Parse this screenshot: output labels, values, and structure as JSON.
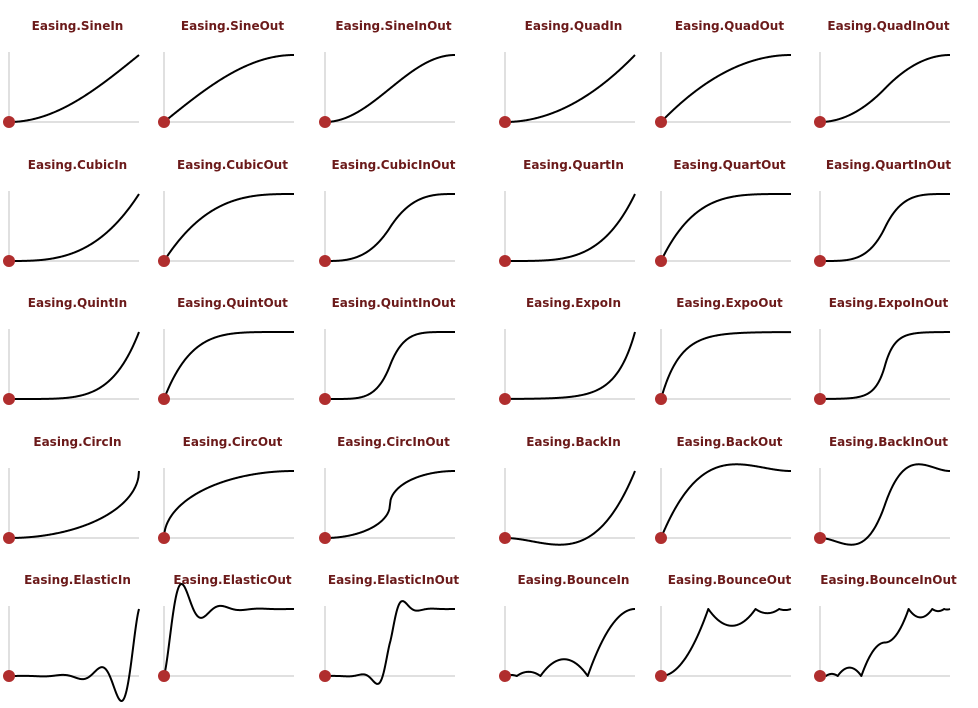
{
  "colors": {
    "title": "#6b1a1a",
    "curve": "#000000",
    "axis": "#d6d6d6",
    "marker": "#b02e2e"
  },
  "chart_data": [
    {
      "type": "line",
      "title": "Easing.SineIn",
      "fn": "SineIn"
    },
    {
      "type": "line",
      "title": "Easing.SineOut",
      "fn": "SineOut"
    },
    {
      "type": "line",
      "title": "Easing.SineInOut",
      "fn": "SineInOut"
    },
    {
      "type": "line",
      "title": "Easing.QuadIn",
      "fn": "QuadIn"
    },
    {
      "type": "line",
      "title": "Easing.QuadOut",
      "fn": "QuadOut"
    },
    {
      "type": "line",
      "title": "Easing.QuadInOut",
      "fn": "QuadInOut"
    },
    {
      "type": "line",
      "title": "Easing.CubicIn",
      "fn": "CubicIn"
    },
    {
      "type": "line",
      "title": "Easing.CubicOut",
      "fn": "CubicOut"
    },
    {
      "type": "line",
      "title": "Easing.CubicInOut",
      "fn": "CubicInOut"
    },
    {
      "type": "line",
      "title": "Easing.QuartIn",
      "fn": "QuartIn"
    },
    {
      "type": "line",
      "title": "Easing.QuartOut",
      "fn": "QuartOut"
    },
    {
      "type": "line",
      "title": "Easing.QuartInOut",
      "fn": "QuartInOut"
    },
    {
      "type": "line",
      "title": "Easing.QuintIn",
      "fn": "QuintIn"
    },
    {
      "type": "line",
      "title": "Easing.QuintOut",
      "fn": "QuintOut"
    },
    {
      "type": "line",
      "title": "Easing.QuintInOut",
      "fn": "QuintInOut"
    },
    {
      "type": "line",
      "title": "Easing.ExpoIn",
      "fn": "ExpoIn"
    },
    {
      "type": "line",
      "title": "Easing.ExpoOut",
      "fn": "ExpoOut"
    },
    {
      "type": "line",
      "title": "Easing.ExpoInOut",
      "fn": "ExpoInOut"
    },
    {
      "type": "line",
      "title": "Easing.CircIn",
      "fn": "CircIn"
    },
    {
      "type": "line",
      "title": "Easing.CircOut",
      "fn": "CircOut"
    },
    {
      "type": "line",
      "title": "Easing.CircInOut",
      "fn": "CircInOut"
    },
    {
      "type": "line",
      "title": "Easing.BackIn",
      "fn": "BackIn"
    },
    {
      "type": "line",
      "title": "Easing.BackOut",
      "fn": "BackOut"
    },
    {
      "type": "line",
      "title": "Easing.BackInOut",
      "fn": "BackInOut"
    },
    {
      "type": "line",
      "title": "Easing.ElasticIn",
      "fn": "ElasticIn"
    },
    {
      "type": "line",
      "title": "Easing.ElasticOut",
      "fn": "ElasticOut"
    },
    {
      "type": "line",
      "title": "Easing.ElasticInOut",
      "fn": "ElasticInOut"
    },
    {
      "type": "line",
      "title": "Easing.BounceIn",
      "fn": "BounceIn"
    },
    {
      "type": "line",
      "title": "Easing.BounceOut",
      "fn": "BounceOut"
    },
    {
      "type": "line",
      "title": "Easing.BounceInOut",
      "fn": "BounceInOut"
    }
  ]
}
